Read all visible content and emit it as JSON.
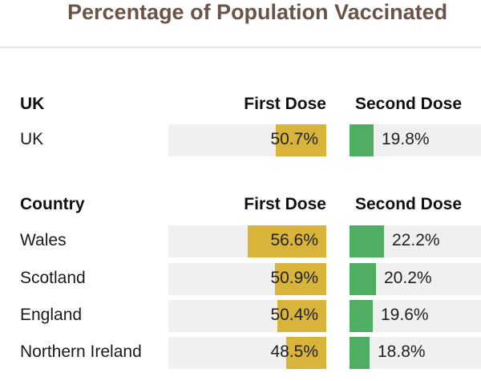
{
  "title": "Percentage of Population Vaccinated",
  "colors": {
    "first_dose": "#d9b43b",
    "second_dose": "#4fae62",
    "track": "#f0f0f0",
    "title": "#6b5347"
  },
  "sections": [
    {
      "header": {
        "label": "UK",
        "first_dose": "First Dose",
        "second_dose": "Second Dose"
      },
      "rows": [
        {
          "name": "UK",
          "first_dose": 50.7,
          "first_dose_label": "50.7%",
          "second_dose": 19.8,
          "second_dose_label": "19.8%"
        }
      ]
    },
    {
      "header": {
        "label": "Country",
        "first_dose": "First Dose",
        "second_dose": "Second Dose"
      },
      "rows": [
        {
          "name": "Wales",
          "first_dose": 56.6,
          "first_dose_label": "56.6%",
          "second_dose": 22.2,
          "second_dose_label": "22.2%"
        },
        {
          "name": "Scotland",
          "first_dose": 50.9,
          "first_dose_label": "50.9%",
          "second_dose": 20.2,
          "second_dose_label": "20.2%"
        },
        {
          "name": "England",
          "first_dose": 50.4,
          "first_dose_label": "50.4%",
          "second_dose": 19.6,
          "second_dose_label": "19.6%"
        },
        {
          "name": "Northern Ireland",
          "first_dose": 48.5,
          "first_dose_label": "48.5%",
          "second_dose": 18.8,
          "second_dose_label": "18.8%"
        }
      ]
    }
  ],
  "chart_data": {
    "type": "table",
    "title": "Percentage of Population Vaccinated",
    "columns": [
      "First Dose",
      "Second Dose"
    ],
    "rows": [
      {
        "group": "UK",
        "name": "UK",
        "first_dose": 50.7,
        "second_dose": 19.8
      },
      {
        "group": "Country",
        "name": "Wales",
        "first_dose": 56.6,
        "second_dose": 22.2
      },
      {
        "group": "Country",
        "name": "Scotland",
        "first_dose": 50.9,
        "second_dose": 20.2
      },
      {
        "group": "Country",
        "name": "England",
        "first_dose": 50.4,
        "second_dose": 19.6
      },
      {
        "group": "Country",
        "name": "Northern Ireland",
        "first_dose": 48.5,
        "second_dose": 18.8
      }
    ],
    "unit": "%"
  }
}
